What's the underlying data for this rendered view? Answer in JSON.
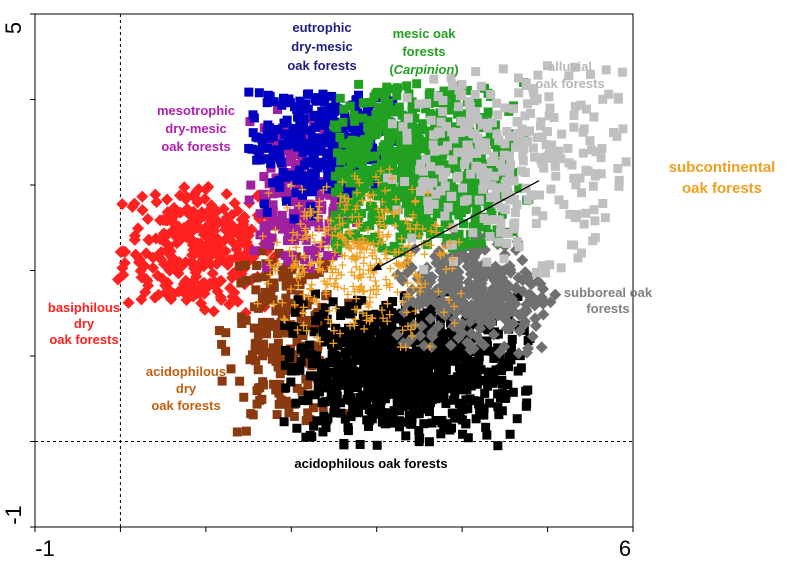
{
  "chart_data": {
    "type": "scatter",
    "title": "",
    "xlabel": "",
    "ylabel": "",
    "xlim": [
      -1,
      6
    ],
    "ylim": [
      -1,
      5
    ],
    "x_ticks_labeled": [
      "-1",
      "6"
    ],
    "y_ticks_labeled": [
      "5",
      "-1"
    ],
    "x_tick_count": 7,
    "y_tick_count": 6,
    "reference_lines": [
      {
        "orientation": "vertical",
        "x": 0,
        "style": "dotted"
      },
      {
        "orientation": "horizontal",
        "y": 0,
        "style": "dotted"
      }
    ],
    "grid": false,
    "legend": "none (groups labeled directly in plot)",
    "series": [
      {
        "id": "basiphilous",
        "name": "basiphilous dry oak forests",
        "label_lines": [
          "basiphilous",
          "dry",
          "oak forests"
        ],
        "color": "#ff2020",
        "marker": "diamond",
        "center": [
          0.95,
          2.25
        ],
        "spread": [
          0.45,
          0.42
        ],
        "xrange": [
          -0.05,
          1.8
        ],
        "yrange": [
          1.5,
          3.05
        ],
        "count": 330
      },
      {
        "id": "acidophilous_dry",
        "name": "acidophilous dry oak forests",
        "label_lines": [
          "acidophilous",
          "dry",
          "oak forests"
        ],
        "color": "#8b3a10",
        "marker": "square",
        "center": [
          1.9,
          1.25
        ],
        "spread": [
          0.32,
          0.55
        ],
        "xrange": [
          1.1,
          2.7
        ],
        "yrange": [
          0.1,
          2.3
        ],
        "count": 220
      },
      {
        "id": "acidophilous",
        "name": "acidophilous oak forests",
        "label_lines": [
          "acidophilous oak forests"
        ],
        "color": "#000000",
        "marker": "square",
        "center": [
          3.25,
          0.85
        ],
        "spread": [
          0.7,
          0.42
        ],
        "xrange": [
          1.9,
          4.8
        ],
        "yrange": [
          -0.05,
          1.75
        ],
        "count": 900
      },
      {
        "id": "subboreal",
        "name": "subboreal oak forests",
        "label_lines": [
          "subboreal oak",
          "forests"
        ],
        "color": "#707070",
        "marker": "diamond",
        "center": [
          4.15,
          1.75
        ],
        "spread": [
          0.45,
          0.38
        ],
        "xrange": [
          3.2,
          5.1
        ],
        "yrange": [
          1.0,
          2.55
        ],
        "count": 320
      },
      {
        "id": "mesotrophic",
        "name": "mesotrophic dry-mesic oak forests",
        "label_lines": [
          "mesotrophic",
          "dry-mesic",
          "oak forests"
        ],
        "color": "#a020a0",
        "marker": "square",
        "center": [
          2.05,
          2.85
        ],
        "spread": [
          0.35,
          0.45
        ],
        "xrange": [
          1.5,
          2.8
        ],
        "yrange": [
          2.0,
          4.0
        ],
        "count": 200
      },
      {
        "id": "eutrophic",
        "name": "eutrophic dry-mesic oak forests",
        "label_lines": [
          "eutrophic",
          "dry-mesic",
          "oak forests"
        ],
        "color": "#0000c0",
        "marker": "square",
        "center": [
          2.4,
          3.5
        ],
        "spread": [
          0.45,
          0.42
        ],
        "xrange": [
          1.5,
          3.2
        ],
        "yrange": [
          2.6,
          4.1
        ],
        "count": 340
      },
      {
        "id": "mesic",
        "name": "mesic oak forests (Carpinion)",
        "label_lines": [
          "mesic oak",
          "forests",
          "(Carpinion)"
        ],
        "color": "#22a022",
        "marker": "square",
        "center": [
          3.45,
          3.15
        ],
        "spread": [
          0.65,
          0.55
        ],
        "xrange": [
          2.5,
          4.8
        ],
        "yrange": [
          2.2,
          4.2
        ],
        "count": 720
      },
      {
        "id": "alluvial",
        "name": "alluvial oak forests",
        "label_lines": [
          "alluvial",
          "oak forests"
        ],
        "color": "#c0c0c0",
        "marker": "square",
        "center": [
          4.55,
          3.3
        ],
        "spread": [
          0.75,
          0.55
        ],
        "xrange": [
          3.1,
          5.95
        ],
        "yrange": [
          1.1,
          4.4
        ],
        "count": 320
      },
      {
        "id": "subcontinental",
        "name": "subcontinental oak forests",
        "label_lines": [
          "subcontinental",
          "oak forests"
        ],
        "color": "#f0a020",
        "marker": "plus",
        "center": [
          2.75,
          2.15
        ],
        "spread": [
          0.55,
          0.48
        ],
        "xrange": [
          1.6,
          4.0
        ],
        "yrange": [
          1.1,
          3.2
        ],
        "count": 380
      }
    ],
    "annotations": [
      {
        "text": "subcontinental oak forests",
        "arrow_from": [
          4.9,
          3.05
        ],
        "arrow_to": [
          2.95,
          2.0
        ]
      }
    ]
  }
}
